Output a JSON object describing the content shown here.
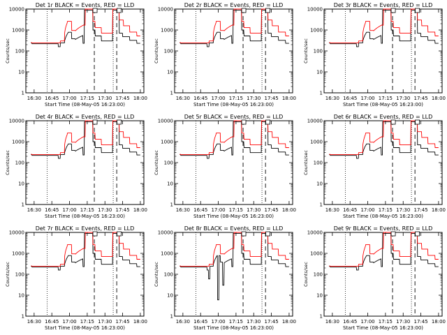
{
  "figure": {
    "background": "#ffffff"
  },
  "chart_data": [
    {
      "type": "line",
      "title": "Det 1r BLACK = Events, RED = LLD",
      "xlabel": "Start Time (08-May-05 16:23:00)",
      "ylabel": "Counts/sec",
      "yscale": "log",
      "ylim": [
        1,
        10000
      ],
      "xlim": [
        16.383,
        18.05
      ],
      "x_tick_labels": [
        "16:30",
        "16:45",
        "17:00",
        "17:15",
        "17:30",
        "17:45",
        "18:00"
      ],
      "y_tick_labels": [
        "1",
        "10",
        "100",
        "1000",
        "10000"
      ],
      "dotted_lines_x": [
        "16:41",
        "17:37"
      ],
      "dashed_lines_x": [
        "17:21",
        "17:40"
      ],
      "series": [
        {
          "name": "Events",
          "color": "#000000"
        },
        {
          "name": "LLD",
          "color": "#ff0000"
        }
      ]
    },
    {
      "type": "line",
      "title": "Det 2r BLACK = Events, RED = LLD",
      "xlabel": "Start Time (08-May-05 16:23:00)",
      "ylabel": "Counts/sec",
      "yscale": "log",
      "ylim": [
        1,
        10000
      ],
      "xlim": [
        16.383,
        18.05
      ],
      "x_tick_labels": [
        "16:30",
        "16:45",
        "17:00",
        "17:15",
        "17:30",
        "17:45",
        "18:00"
      ],
      "y_tick_labels": [
        "1",
        "10",
        "100",
        "1000",
        "10000"
      ],
      "dotted_lines_x": [
        "16:41",
        "17:37"
      ],
      "dashed_lines_x": [
        "17:21",
        "17:40"
      ],
      "series": [
        {
          "name": "Events",
          "color": "#000000"
        },
        {
          "name": "LLD",
          "color": "#ff0000"
        }
      ]
    },
    {
      "type": "line",
      "title": "Det 3r BLACK = Events, RED = LLD",
      "xlabel": "Start Time (08-May-05 16:23:00)",
      "ylabel": "Counts/sec",
      "yscale": "log",
      "ylim": [
        1,
        10000
      ],
      "xlim": [
        16.383,
        18.05
      ],
      "x_tick_labels": [
        "16:30",
        "16:45",
        "17:00",
        "17:15",
        "17:30",
        "17:45",
        "18:00"
      ],
      "y_tick_labels": [
        "1",
        "10",
        "100",
        "1000",
        "10000"
      ],
      "dotted_lines_x": [
        "16:41",
        "17:37"
      ],
      "dashed_lines_x": [
        "17:21",
        "17:40"
      ],
      "series": [
        {
          "name": "Events",
          "color": "#000000"
        },
        {
          "name": "LLD",
          "color": "#ff0000"
        }
      ]
    },
    {
      "type": "line",
      "title": "Det 4r BLACK = Events, RED = LLD",
      "xlabel": "Start Time (08-May-05 16:23:00)",
      "ylabel": "Counts/sec",
      "yscale": "log",
      "ylim": [
        1,
        10000
      ],
      "xlim": [
        16.383,
        18.05
      ],
      "x_tick_labels": [
        "16:30",
        "16:45",
        "17:00",
        "17:15",
        "17:30",
        "17:45",
        "18:00"
      ],
      "y_tick_labels": [
        "1",
        "10",
        "100",
        "1000",
        "10000"
      ],
      "dotted_lines_x": [
        "16:41",
        "17:37"
      ],
      "dashed_lines_x": [
        "17:21",
        "17:40"
      ],
      "series": [
        {
          "name": "Events",
          "color": "#000000"
        },
        {
          "name": "LLD",
          "color": "#ff0000"
        }
      ]
    },
    {
      "type": "line",
      "title": "Det 5r BLACK = Events, RED = LLD",
      "xlabel": "Start Time (08-May-05 16:23:00)",
      "ylabel": "Counts/sec",
      "yscale": "log",
      "ylim": [
        1,
        10000
      ],
      "xlim": [
        16.383,
        18.05
      ],
      "x_tick_labels": [
        "16:30",
        "16:45",
        "17:00",
        "17:15",
        "17:30",
        "17:45",
        "18:00"
      ],
      "y_tick_labels": [
        "1",
        "10",
        "100",
        "1000",
        "10000"
      ],
      "dotted_lines_x": [
        "16:41",
        "17:37"
      ],
      "dashed_lines_x": [
        "17:21",
        "17:40"
      ],
      "series": [
        {
          "name": "Events",
          "color": "#000000"
        },
        {
          "name": "LLD",
          "color": "#ff0000"
        }
      ]
    },
    {
      "type": "line",
      "title": "Det 6r BLACK = Events, RED = LLD",
      "xlabel": "Start Time (08-May-05 16:23:00)",
      "ylabel": "Counts/sec",
      "yscale": "log",
      "ylim": [
        1,
        10000
      ],
      "xlim": [
        16.383,
        18.05
      ],
      "x_tick_labels": [
        "16:30",
        "16:45",
        "17:00",
        "17:15",
        "17:30",
        "17:45",
        "18:00"
      ],
      "y_tick_labels": [
        "1",
        "10",
        "100",
        "1000",
        "10000"
      ],
      "dotted_lines_x": [
        "16:41",
        "17:37"
      ],
      "dashed_lines_x": [
        "17:21",
        "17:40"
      ],
      "series": [
        {
          "name": "Events",
          "color": "#000000"
        },
        {
          "name": "LLD",
          "color": "#ff0000"
        }
      ]
    },
    {
      "type": "line",
      "title": "Det 7r BLACK = Events, RED = LLD",
      "xlabel": "Start Time (08-May-05 16:23:00)",
      "ylabel": "Counts/sec",
      "yscale": "log",
      "ylim": [
        1,
        10000
      ],
      "xlim": [
        16.383,
        18.05
      ],
      "x_tick_labels": [
        "16:30",
        "16:45",
        "17:00",
        "17:15",
        "17:30",
        "17:45",
        "18:00"
      ],
      "y_tick_labels": [
        "1",
        "10",
        "100",
        "1000",
        "10000"
      ],
      "dotted_lines_x": [
        "16:41",
        "17:37"
      ],
      "dashed_lines_x": [
        "17:21",
        "17:40"
      ],
      "series": [
        {
          "name": "Events",
          "color": "#000000"
        },
        {
          "name": "LLD",
          "color": "#ff0000"
        }
      ]
    },
    {
      "type": "line",
      "title": "Det 8r BLACK = Events, RED = LLD",
      "xlabel": "Start Time (08-May-05 16:23:00)",
      "ylabel": "Counts/sec",
      "yscale": "log",
      "ylim": [
        1,
        10000
      ],
      "xlim": [
        16.383,
        18.05
      ],
      "x_tick_labels": [
        "16:30",
        "16:45",
        "17:00",
        "17:15",
        "17:30",
        "17:45",
        "18:00"
      ],
      "y_tick_labels": [
        "1",
        "10",
        "100",
        "1000",
        "10000"
      ],
      "dotted_lines_x": [
        "16:41",
        "17:37"
      ],
      "dashed_lines_x": [
        "17:21",
        "17:40"
      ],
      "series": [
        {
          "name": "Events",
          "color": "#000000"
        },
        {
          "name": "LLD",
          "color": "#ff0000"
        }
      ]
    },
    {
      "type": "line",
      "title": "Det 9r BLACK = Events, RED = LLD",
      "xlabel": "Start Time (08-May-05 16:23:00)",
      "ylabel": "Counts/sec",
      "yscale": "log",
      "ylim": [
        1,
        10000
      ],
      "xlim": [
        16.383,
        18.05
      ],
      "x_tick_labels": [
        "16:30",
        "16:45",
        "17:00",
        "17:15",
        "17:30",
        "17:45",
        "18:00"
      ],
      "y_tick_labels": [
        "1",
        "10",
        "100",
        "1000",
        "10000"
      ],
      "dotted_lines_x": [
        "16:41",
        "17:37"
      ],
      "dashed_lines_x": [
        "17:21",
        "17:40"
      ],
      "series": [
        {
          "name": "Events",
          "color": "#000000"
        },
        {
          "name": "LLD",
          "color": "#ff0000"
        }
      ]
    }
  ]
}
